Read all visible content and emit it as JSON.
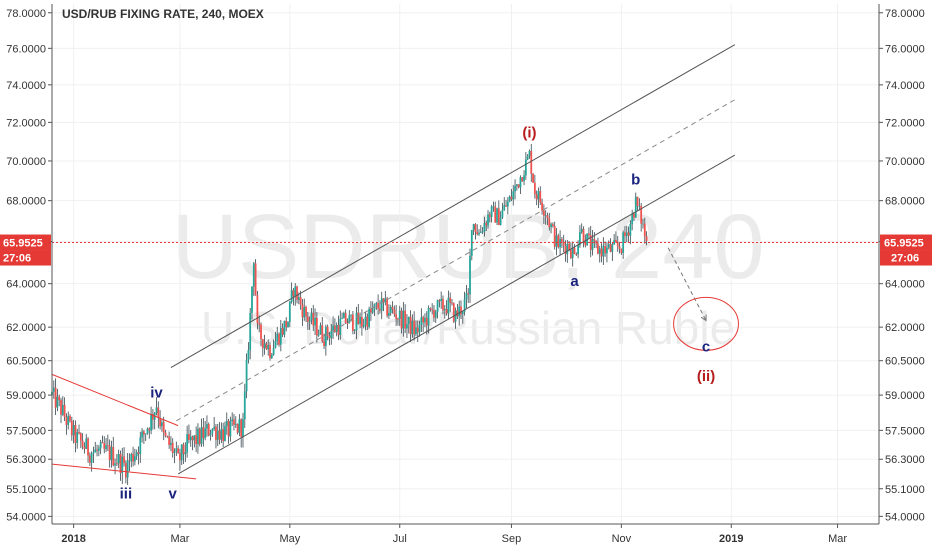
{
  "chart_data": {
    "type": "candlestick",
    "title": "USD/RUB FIXING RATE, 240, MOEX",
    "watermark": {
      "symbol": "USDRUB, 240",
      "description": "U.S. Dollar/Russian Ruble"
    },
    "ylim": [
      53.7,
      78.5
    ],
    "y_ticks": [
      54.0,
      55.1,
      56.3,
      57.5,
      59.0,
      60.5,
      62.0,
      64.0,
      66.0,
      68.0,
      70.0,
      72.0,
      74.0,
      76.0,
      78.0
    ],
    "y_tick_labels": [
      "54.0000",
      "55.1000",
      "56.3000",
      "57.5000",
      "59.0000",
      "60.5000",
      "62.0000",
      "64.0000",
      "66.0000",
      "68.0000",
      "70.0000",
      "72.0000",
      "74.0000",
      "76.0000",
      "78.0000"
    ],
    "x_ticks": [
      {
        "label": "2018",
        "date": "2018-01-01"
      },
      {
        "label": "Mar",
        "date": "2018-03-01"
      },
      {
        "label": "May",
        "date": "2018-05-01"
      },
      {
        "label": "Jul",
        "date": "2018-07-01"
      },
      {
        "label": "Sep",
        "date": "2018-09-01"
      },
      {
        "label": "Nov",
        "date": "2018-11-01"
      },
      {
        "label": "2019",
        "date": "2019-01-01"
      },
      {
        "label": "Mar",
        "date": "2019-03-01"
      }
    ],
    "x_range": [
      "2017-12-20",
      "2019-03-24"
    ],
    "last_price": {
      "label": "65.9525",
      "value": 65.9525,
      "countdown": "27:06"
    },
    "price_path": [
      [
        "2017-12-20",
        59.0
      ],
      [
        "2017-12-25",
        58.4
      ],
      [
        "2018-01-01",
        57.3
      ],
      [
        "2018-01-10",
        56.6
      ],
      [
        "2018-01-20",
        56.6
      ],
      [
        "2018-01-30",
        56.0
      ],
      [
        "2018-02-05",
        56.7
      ],
      [
        "2018-02-13",
        58.0
      ],
      [
        "2018-02-16",
        58.6
      ],
      [
        "2018-02-20",
        57.2
      ],
      [
        "2018-02-25",
        56.7
      ],
      [
        "2018-02-28",
        56.2
      ],
      [
        "2018-03-05",
        56.9
      ],
      [
        "2018-03-12",
        57.2
      ],
      [
        "2018-03-18",
        57.6
      ],
      [
        "2018-03-25",
        57.4
      ],
      [
        "2018-04-05",
        57.7
      ],
      [
        "2018-04-09",
        62.5
      ],
      [
        "2018-04-11",
        65.3
      ],
      [
        "2018-04-13",
        61.8
      ],
      [
        "2018-04-20",
        61.0
      ],
      [
        "2018-04-30",
        62.3
      ],
      [
        "2018-05-03",
        63.8
      ],
      [
        "2018-05-10",
        62.5
      ],
      [
        "2018-05-20",
        61.6
      ],
      [
        "2018-06-01",
        62.3
      ],
      [
        "2018-06-10",
        62.2
      ],
      [
        "2018-06-20",
        63.0
      ],
      [
        "2018-06-29",
        62.6
      ],
      [
        "2018-07-10",
        61.8
      ],
      [
        "2018-07-20",
        62.8
      ],
      [
        "2018-07-28",
        63.0
      ],
      [
        "2018-08-01",
        62.5
      ],
      [
        "2018-08-08",
        63.3
      ],
      [
        "2018-08-10",
        67.0
      ],
      [
        "2018-08-14",
        66.4
      ],
      [
        "2018-08-20",
        67.4
      ],
      [
        "2018-08-25",
        67.2
      ],
      [
        "2018-08-31",
        68.0
      ],
      [
        "2018-09-06",
        69.2
      ],
      [
        "2018-09-11",
        70.3
      ],
      [
        "2018-09-14",
        68.5
      ],
      [
        "2018-09-20",
        67.5
      ],
      [
        "2018-09-26",
        65.9
      ],
      [
        "2018-10-03",
        65.8
      ],
      [
        "2018-10-06",
        65.3
      ],
      [
        "2018-10-09",
        66.6
      ],
      [
        "2018-10-12",
        66.2
      ],
      [
        "2018-10-16",
        65.7
      ],
      [
        "2018-10-20",
        65.6
      ],
      [
        "2018-10-26",
        65.6
      ],
      [
        "2018-11-01",
        65.8
      ],
      [
        "2018-11-06",
        66.9
      ],
      [
        "2018-11-09",
        67.9
      ],
      [
        "2018-11-12",
        67.1
      ],
      [
        "2018-11-15",
        65.95
      ]
    ],
    "annotations": {
      "upper_channel": {
        "start": [
          "2018-02-24",
          60.2
        ],
        "end": [
          "2019-01-03",
          76.2
        ]
      },
      "mid_channel": {
        "start": [
          "2018-02-27",
          57.9
        ],
        "end": [
          "2019-01-03",
          73.2
        ]
      },
      "lower_channel": {
        "start": [
          "2018-02-28",
          55.7
        ],
        "end": [
          "2019-01-03",
          70.3
        ]
      },
      "triangle_upper": {
        "start": [
          "2017-12-20",
          59.9
        ],
        "end": [
          "2018-02-28",
          57.7
        ]
      },
      "triangle_lower": {
        "start": [
          "2017-12-20",
          56.1
        ],
        "end": [
          "2018-03-10",
          55.5
        ]
      },
      "projection_arrow": {
        "start": [
          "2018-11-27",
          65.7
        ],
        "end": [
          "2018-12-18",
          62.3
        ]
      },
      "target_ellipse": {
        "center": [
          "2018-12-18",
          62.15
        ],
        "rx_days": 18,
        "ry_price": 1.2
      },
      "labels": [
        {
          "text": "iii",
          "date": "2018-01-30",
          "value": 54.7,
          "color": "#1a237e"
        },
        {
          "text": "iv",
          "date": "2018-02-16",
          "value": 58.9,
          "color": "#1a237e"
        },
        {
          "text": "v",
          "date": "2018-02-25",
          "value": 54.7,
          "color": "#1a237e"
        },
        {
          "text": "(i)",
          "date": "2018-09-11",
          "value": 71.2,
          "color": "#b71c1c"
        },
        {
          "text": "a",
          "date": "2018-10-06",
          "value": 63.9,
          "color": "#1a237e"
        },
        {
          "text": "b",
          "date": "2018-11-09",
          "value": 68.8,
          "color": "#1a237e"
        },
        {
          "text": "c",
          "date": "2018-12-18",
          "value": 60.9,
          "color": "#1a237e"
        },
        {
          "text": "(ii)",
          "date": "2018-12-18",
          "value": 59.6,
          "color": "#b71c1c"
        }
      ]
    },
    "colors": {
      "up": "#26a69a",
      "down": "#ef5350",
      "wick": "#37474f",
      "channel": "#555555",
      "triangle": "#e53935",
      "price_line": "#e53935",
      "badge": "#e53935",
      "grid": "#f0f0f0",
      "axis": "#555555"
    }
  }
}
